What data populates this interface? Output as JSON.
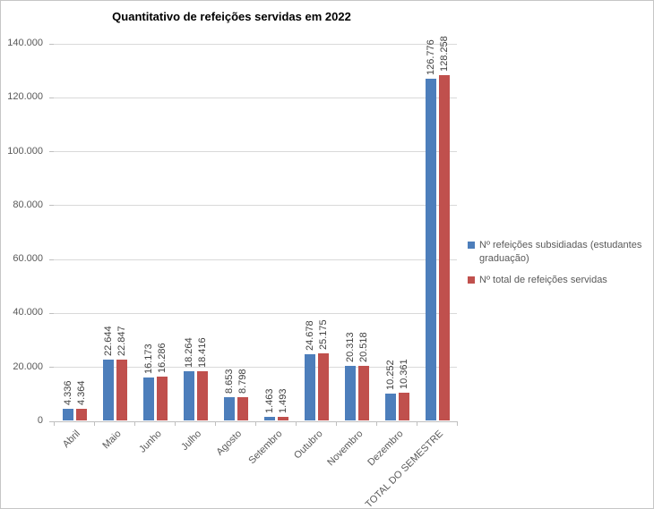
{
  "chart_data": {
    "type": "bar",
    "title": "Quantitativo de refeições servidas em 2022",
    "categories": [
      "Abril",
      "Maio",
      "Junho",
      "Julho",
      "Agosto",
      "Setembro",
      "Outubro",
      "Novembro",
      "Dezembro",
      "TOTAL DO SEMESTRE"
    ],
    "series": [
      {
        "name": "Nº refeições subsidiadas (estudantes graduação)",
        "color": "#4d7ebb",
        "values": [
          4336,
          22644,
          16173,
          18264,
          8653,
          1463,
          24678,
          20313,
          10252,
          126776
        ],
        "labels": [
          "4.336",
          "22.644",
          "16.173",
          "18.264",
          "8.653",
          "1.463",
          "24.678",
          "20.313",
          "10.252",
          "126.776"
        ]
      },
      {
        "name": "Nº total de refeições servidas",
        "color": "#c0504d",
        "values": [
          4364,
          22847,
          16286,
          18416,
          8798,
          1493,
          25175,
          20518,
          10361,
          128258
        ],
        "labels": [
          "4.364",
          "22.847",
          "16.286",
          "18.416",
          "8.798",
          "1.493",
          "25.175",
          "20.518",
          "10.361",
          "128.258"
        ]
      }
    ],
    "y_axis": {
      "min": 0,
      "max": 140000,
      "step": 20000,
      "tick_labels": [
        "0",
        "20.000",
        "40.000",
        "60.000",
        "80.000",
        "100.000",
        "120.000",
        "140.000"
      ]
    },
    "legend_position": "right",
    "gridlines": true,
    "palette": {
      "gridline": "#d9d9d9",
      "axis_line": "#bfbfbf",
      "axis_text": "#595959",
      "data_label_text": "#404040",
      "legend_text": "#595959",
      "title_text": "#000000"
    }
  }
}
